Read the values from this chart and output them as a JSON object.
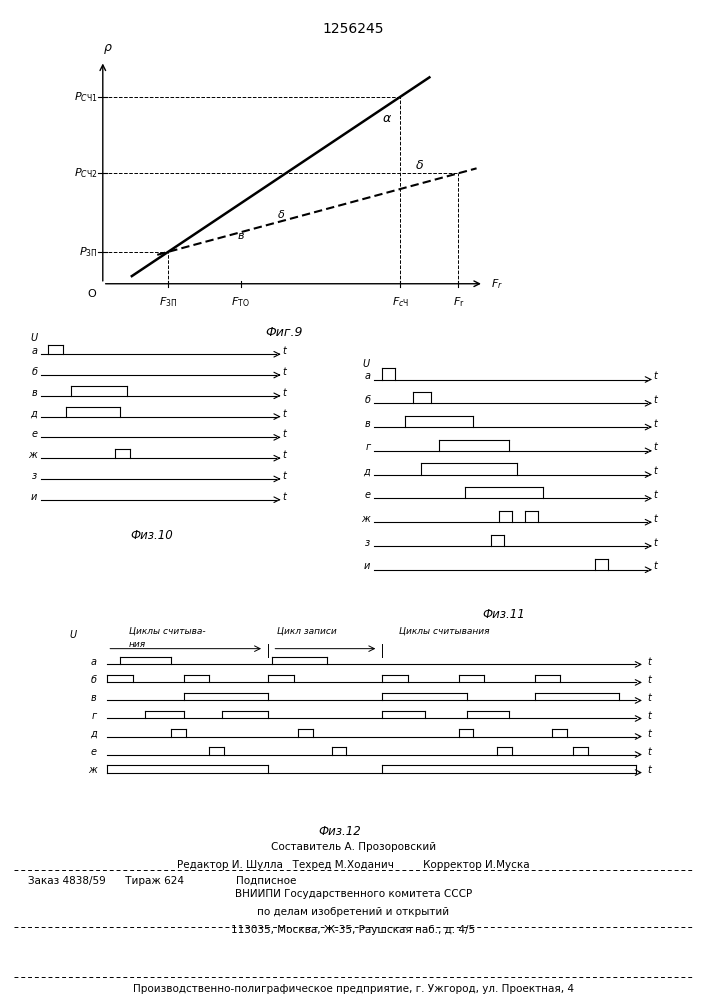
{
  "title": "1256245",
  "fig9_label": "Фиг.9",
  "fig10_label": "Физ.10",
  "fig11_label": "Физ.11",
  "fig12_label": "Физ.12",
  "bg_color": "#ffffff",
  "footer_line1": "Составитель А. Прозоровский",
  "footer_line2": "Редактор И. Шулла   Техред М.Ходанич         Корректор И.Муска",
  "footer_line3": "Заказ 4838/59      Тираж 624                Подписное",
  "footer_line4": "ВНИИПИ Государственного комитета СССР",
  "footer_line5": "по делам изобретений и открытий",
  "footer_line6": "113035, Москва, Ж-35, Раушская наб., д. 4/5",
  "footer_line7": "Производственно-полиграфическое предприятие, г. Ужгород, ул. Проектная, 4"
}
